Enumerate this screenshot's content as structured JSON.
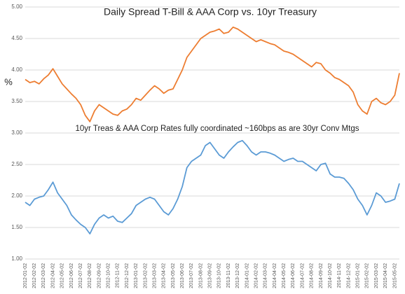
{
  "chart_data": {
    "type": "line",
    "title": "Daily Spread T-Bill & AAA Corp vs. 10yr Treasury",
    "annotation": "10yr Treas & AAA Corp Rates fully coordinated ~160bps as are 30yr Conv Mtgs",
    "y_label": "%",
    "categories": [
      "2012-01-02",
      null,
      "2012-02-02",
      null,
      "2012-03-02",
      null,
      "2012-04-02",
      null,
      "2012-05-02",
      null,
      "2012-06-02",
      null,
      "2012-07-02",
      null,
      "2012-08-02",
      null,
      "2012-09-02",
      null,
      "2012-10-02",
      null,
      "2012-11-02",
      null,
      "2012-12-02",
      null,
      "2013-01-02",
      null,
      "2013-02-02",
      null,
      "2013-03-02",
      null,
      "2013-04-02",
      null,
      "2013-05-02",
      null,
      "2013-06-02",
      null,
      "2013-07-02",
      null,
      "2013-08-02",
      null,
      "2013-09-02",
      null,
      "2013-10-02",
      null,
      "2013-11-02",
      null,
      "2013-12-02",
      null,
      "2014-01-02",
      null,
      "2014-02-02",
      null,
      "2014-03-02",
      null,
      "2014-04-02",
      null,
      "2014-05-02",
      null,
      "2014-06-02",
      null,
      "2014-07-02",
      null,
      "2014-08-02",
      null,
      "2014-09-02",
      null,
      "2014-10-02",
      null,
      "2014-11-02",
      null,
      "2014-12-02",
      null,
      "2015-01-02",
      null,
      "2015-02-02",
      null,
      "2015-03-02",
      null,
      "2015-04-02",
      null,
      "2015-05-02",
      null
    ],
    "series": [
      {
        "color": "#ed7d31",
        "values": [
          3.85,
          3.8,
          3.82,
          3.78,
          3.86,
          3.92,
          4.02,
          3.9,
          3.78,
          3.7,
          3.62,
          3.55,
          3.45,
          3.28,
          3.18,
          3.35,
          3.45,
          3.4,
          3.35,
          3.3,
          3.28,
          3.35,
          3.38,
          3.45,
          3.55,
          3.52,
          3.6,
          3.68,
          3.75,
          3.7,
          3.63,
          3.68,
          3.7,
          3.85,
          4.0,
          4.2,
          4.3,
          4.4,
          4.5,
          4.55,
          4.6,
          4.62,
          4.65,
          4.58,
          4.6,
          4.68,
          4.65,
          4.6,
          4.55,
          4.5,
          4.45,
          4.48,
          4.45,
          4.42,
          4.4,
          4.35,
          4.3,
          4.28,
          4.25,
          4.2,
          4.15,
          4.1,
          4.05,
          4.12,
          4.1,
          4.0,
          3.95,
          3.88,
          3.85,
          3.8,
          3.75,
          3.65,
          3.45,
          3.35,
          3.3,
          3.5,
          3.55,
          3.48,
          3.45,
          3.5,
          3.6,
          3.95
        ]
      },
      {
        "color": "#5b9bd5",
        "values": [
          1.9,
          1.85,
          1.95,
          1.98,
          2.0,
          2.1,
          2.22,
          2.05,
          1.95,
          1.85,
          1.7,
          1.62,
          1.55,
          1.5,
          1.4,
          1.55,
          1.65,
          1.7,
          1.65,
          1.68,
          1.6,
          1.58,
          1.65,
          1.72,
          1.85,
          1.9,
          1.95,
          1.98,
          1.95,
          1.85,
          1.75,
          1.7,
          1.8,
          1.95,
          2.15,
          2.45,
          2.55,
          2.6,
          2.65,
          2.8,
          2.85,
          2.75,
          2.65,
          2.6,
          2.7,
          2.78,
          2.85,
          2.88,
          2.8,
          2.7,
          2.65,
          2.7,
          2.7,
          2.68,
          2.65,
          2.6,
          2.55,
          2.58,
          2.6,
          2.55,
          2.55,
          2.5,
          2.45,
          2.4,
          2.5,
          2.52,
          2.35,
          2.3,
          2.3,
          2.28,
          2.2,
          2.1,
          1.95,
          1.85,
          1.7,
          1.85,
          2.05,
          2.0,
          1.9,
          1.92,
          1.95,
          2.2
        ]
      }
    ],
    "ylim": [
      1,
      5
    ],
    "yticks": [
      {
        "value": 1,
        "label": "1.00"
      },
      {
        "value": 1.5,
        "label": "1.50"
      },
      {
        "value": 2,
        "label": "2.00"
      },
      {
        "value": 2.5,
        "label": "2.50"
      },
      {
        "value": 3,
        "label": "3.00"
      },
      {
        "value": 3.5,
        "label": "3.50"
      },
      {
        "value": 4,
        "label": "4.00"
      },
      {
        "value": 4.5,
        "label": "4.50"
      },
      {
        "value": 5,
        "label": "5.00"
      }
    ],
    "grid": true
  }
}
